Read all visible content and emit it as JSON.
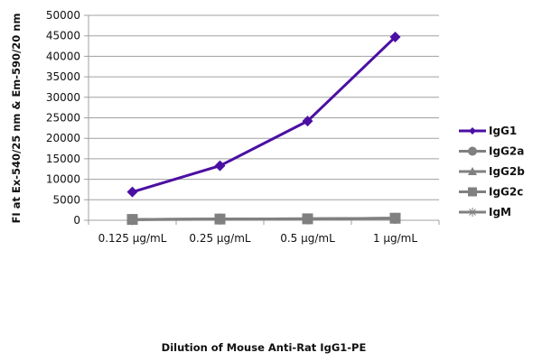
{
  "chart_data": {
    "type": "line",
    "title": "",
    "xlabel": "Dilution of Mouse Anti-Rat IgG1-PE",
    "ylabel": "FI at Ex-540/25 nm & Em-590/20 nm",
    "categories": [
      "0.125 µg/mL",
      "0.25 µg/mL",
      "0.5 µg/mL",
      "1 µg/mL"
    ],
    "ylim": [
      0,
      50000
    ],
    "yticks": [
      0,
      5000,
      10000,
      15000,
      20000,
      25000,
      30000,
      35000,
      40000,
      45000,
      50000
    ],
    "grid": true,
    "legend": "right",
    "series": [
      {
        "name": "IgG1",
        "marker": "diamond",
        "color": "#4b0fa3",
        "values": [
          6900,
          13300,
          24200,
          44700
        ]
      },
      {
        "name": "IgG2a",
        "marker": "circle",
        "color": "#808080",
        "values": [
          200,
          300,
          350,
          500
        ]
      },
      {
        "name": "IgG2b",
        "marker": "triangle",
        "color": "#808080",
        "values": [
          200,
          300,
          350,
          500
        ]
      },
      {
        "name": "IgG2c",
        "marker": "square",
        "color": "#808080",
        "values": [
          200,
          300,
          350,
          500
        ]
      },
      {
        "name": "IgM",
        "marker": "star",
        "color": "#808080",
        "values": [
          150,
          250,
          300,
          450
        ]
      }
    ]
  }
}
